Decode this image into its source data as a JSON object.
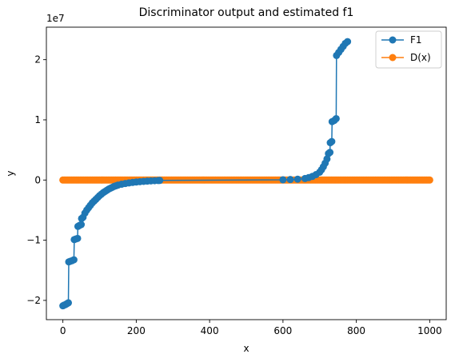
{
  "chart_data": {
    "type": "line",
    "title": "Discriminator output and estimated f1",
    "xlabel": "x",
    "ylabel": "y",
    "xlim": [
      -45,
      1045
    ],
    "ylim": [
      -23200000,
      25400000
    ],
    "xticks": [
      0,
      200,
      400,
      600,
      800,
      1000
    ],
    "yticks": [
      -20000000,
      -10000000,
      0,
      10000000,
      20000000
    ],
    "ytick_labels": [
      "−2",
      "−1",
      "0",
      "1",
      "2"
    ],
    "y_scale_label": "1e7",
    "grid": false,
    "legend": "top-right",
    "colors": {
      "F1": "#1f77b4",
      "D(x)": "#ff7f0e"
    },
    "series": [
      {
        "name": "F1",
        "marker": "circle",
        "points": [
          [
            0,
            -20900000
          ],
          [
            3,
            -20800000
          ],
          [
            7,
            -20700000
          ],
          [
            11,
            -20550000
          ],
          [
            15,
            -20400000
          ],
          [
            16,
            -13600000
          ],
          [
            20,
            -13500000
          ],
          [
            25,
            -13400000
          ],
          [
            30,
            -13250000
          ],
          [
            31,
            -9900000
          ],
          [
            35,
            -9800000
          ],
          [
            40,
            -9700000
          ],
          [
            41,
            -7700000
          ],
          [
            45,
            -7550000
          ],
          [
            50,
            -7400000
          ],
          [
            51,
            -6400000
          ],
          [
            55,
            -6200000
          ],
          [
            60,
            -5500000
          ],
          [
            65,
            -5000000
          ],
          [
            70,
            -4600000
          ],
          [
            75,
            -4200000
          ],
          [
            80,
            -3800000
          ],
          [
            85,
            -3500000
          ],
          [
            90,
            -3200000
          ],
          [
            95,
            -2900000
          ],
          [
            100,
            -2600000
          ],
          [
            105,
            -2350000
          ],
          [
            110,
            -2100000
          ],
          [
            115,
            -1900000
          ],
          [
            120,
            -1700000
          ],
          [
            125,
            -1500000
          ],
          [
            130,
            -1350000
          ],
          [
            135,
            -1200000
          ],
          [
            140,
            -1050000
          ],
          [
            145,
            -950000
          ],
          [
            150,
            -850000
          ],
          [
            160,
            -700000
          ],
          [
            170,
            -580000
          ],
          [
            180,
            -480000
          ],
          [
            190,
            -400000
          ],
          [
            200,
            -330000
          ],
          [
            210,
            -270000
          ],
          [
            220,
            -220000
          ],
          [
            230,
            -180000
          ],
          [
            240,
            -140000
          ],
          [
            250,
            -110000
          ],
          [
            260,
            -80000
          ],
          [
            264,
            -70000
          ],
          [
            600,
            40000
          ],
          [
            620,
            80000
          ],
          [
            640,
            140000
          ],
          [
            660,
            250000
          ],
          [
            670,
            400000
          ],
          [
            680,
            600000
          ],
          [
            690,
            900000
          ],
          [
            700,
            1300000
          ],
          [
            705,
            1700000
          ],
          [
            710,
            2200000
          ],
          [
            715,
            2800000
          ],
          [
            720,
            3500000
          ],
          [
            724,
            4400000
          ],
          [
            728,
            4600000
          ],
          [
            729,
            6200000
          ],
          [
            733,
            6400000
          ],
          [
            734,
            9700000
          ],
          [
            740,
            9900000
          ],
          [
            745,
            10200000
          ],
          [
            746,
            20700000
          ],
          [
            752,
            21200000
          ],
          [
            758,
            21700000
          ],
          [
            764,
            22200000
          ],
          [
            770,
            22700000
          ],
          [
            776,
            23000000
          ]
        ]
      },
      {
        "name": "D(x)",
        "marker": "circle",
        "segments": [
          {
            "x_start": 0,
            "x_end": 1000,
            "y": 0
          }
        ]
      }
    ]
  }
}
